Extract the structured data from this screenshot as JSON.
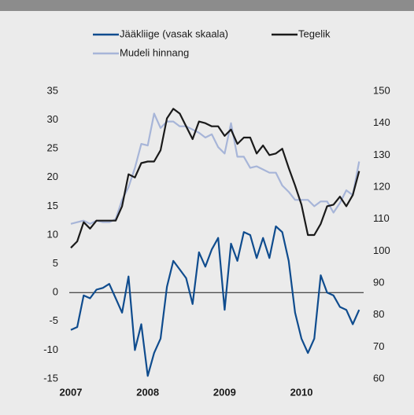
{
  "chart_data": {
    "type": "line",
    "categories": [
      "2007",
      null,
      null,
      null,
      null,
      null,
      null,
      null,
      null,
      null,
      null,
      null,
      "2008",
      null,
      null,
      null,
      null,
      null,
      null,
      null,
      null,
      null,
      null,
      null,
      "2009",
      null,
      null,
      null,
      null,
      null,
      null,
      null,
      null,
      null,
      null,
      null,
      "2010",
      null,
      null,
      null,
      null,
      null,
      null,
      null,
      null,
      null
    ],
    "series": [
      {
        "name": "Jääkliige (vasak skaala)",
        "color": "#0f4c8e",
        "axis": "y",
        "values": [
          -6.5,
          -6,
          -0.5,
          -1,
          0.5,
          0.8,
          1.5,
          -1,
          -3.5,
          2.8,
          -10,
          -5.5,
          -14.5,
          -10.5,
          -8,
          1,
          5.5,
          4,
          2.5,
          -2,
          7,
          4.5,
          7.5,
          9.5,
          -3,
          8.5,
          5.5,
          10.5,
          10,
          6,
          9.5,
          6,
          11.5,
          10.5,
          5.5,
          -3.5,
          -8,
          -10.5,
          -8,
          3,
          0,
          -0.5,
          -2.5,
          -3,
          -5.5,
          -3
        ]
      },
      {
        "name": "Tegelik",
        "color": "#1a1a1a",
        "axis": "y2",
        "values": [
          101,
          103,
          109,
          107,
          109.5,
          109.5,
          109.5,
          109.5,
          114,
          124,
          123,
          127.5,
          128,
          128,
          131.5,
          141.5,
          144.5,
          143,
          139,
          135,
          140.5,
          140,
          139,
          139,
          136,
          138,
          133.5,
          135.5,
          135.5,
          130.5,
          133,
          130,
          130.5,
          132,
          126,
          120.5,
          114.5,
          105,
          105,
          108.5,
          114,
          114.5,
          117,
          114,
          117.5,
          125
        ]
      },
      {
        "name": "Mudeli hinnang",
        "color": "#a7b5d8",
        "axis": "y2",
        "values": [
          108.5,
          109,
          109.5,
          108.5,
          109.5,
          109,
          109,
          110,
          116,
          120,
          126,
          133.5,
          133,
          143,
          138.5,
          140.5,
          140.5,
          139,
          139,
          138,
          137,
          135.5,
          136.5,
          132.5,
          130.5,
          140,
          129.5,
          129.5,
          126,
          126.5,
          125.5,
          124.5,
          124.5,
          120.5,
          118.5,
          116,
          116,
          116,
          114,
          115.5,
          115.5,
          112,
          115,
          119,
          117.5,
          128
        ]
      }
    ],
    "ylim": [
      -15,
      35
    ],
    "yticks": [
      -15,
      -10,
      -5,
      0,
      5,
      10,
      15,
      20,
      25,
      30,
      35
    ],
    "y2lim": [
      60,
      150
    ],
    "y2ticks": [
      60,
      70,
      80,
      90,
      100,
      110,
      120,
      130,
      140,
      150
    ]
  }
}
